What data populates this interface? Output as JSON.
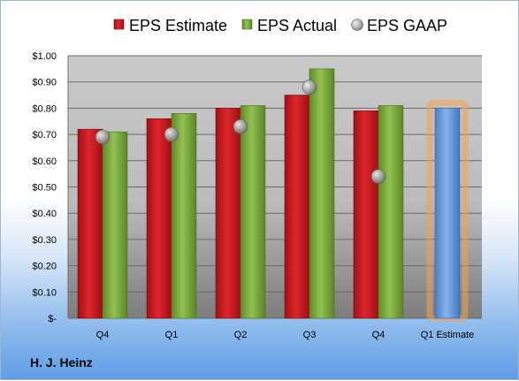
{
  "company": "H. J. Heinz",
  "colors": {
    "estimate": "#c0161b",
    "actual": "#79a83a",
    "forecast": "#5d93d4",
    "gaap": "#8a8a8a",
    "forecast_glow": "#f5a04a"
  },
  "chart_data": {
    "type": "bar",
    "categories": [
      "Q4",
      "Q1",
      "Q2",
      "Q3",
      "Q4",
      "Q1 Estimate"
    ],
    "series": [
      {
        "name": "EPS Estimate",
        "values": [
          0.72,
          0.76,
          0.8,
          0.85,
          0.79,
          null
        ]
      },
      {
        "name": "EPS Actual",
        "values": [
          0.71,
          0.78,
          0.81,
          0.95,
          0.81,
          null
        ]
      },
      {
        "name": "EPS GAAP",
        "type": "scatter",
        "values": [
          0.69,
          0.7,
          0.73,
          0.88,
          0.54,
          null
        ]
      }
    ],
    "forecast": {
      "category": "Q1 Estimate",
      "value": 0.8
    },
    "ylim": [
      0,
      1.0
    ],
    "yticks": [
      0,
      0.1,
      0.2,
      0.3,
      0.4,
      0.5,
      0.6,
      0.7,
      0.8,
      0.9,
      1.0
    ],
    "ytick_labels": [
      "$-",
      "$0.10",
      "$0.20",
      "$0.30",
      "$0.40",
      "$0.50",
      "$0.60",
      "$0.70",
      "$0.80",
      "$0.90",
      "$1.00"
    ],
    "legend_position": "top",
    "grid": true
  }
}
